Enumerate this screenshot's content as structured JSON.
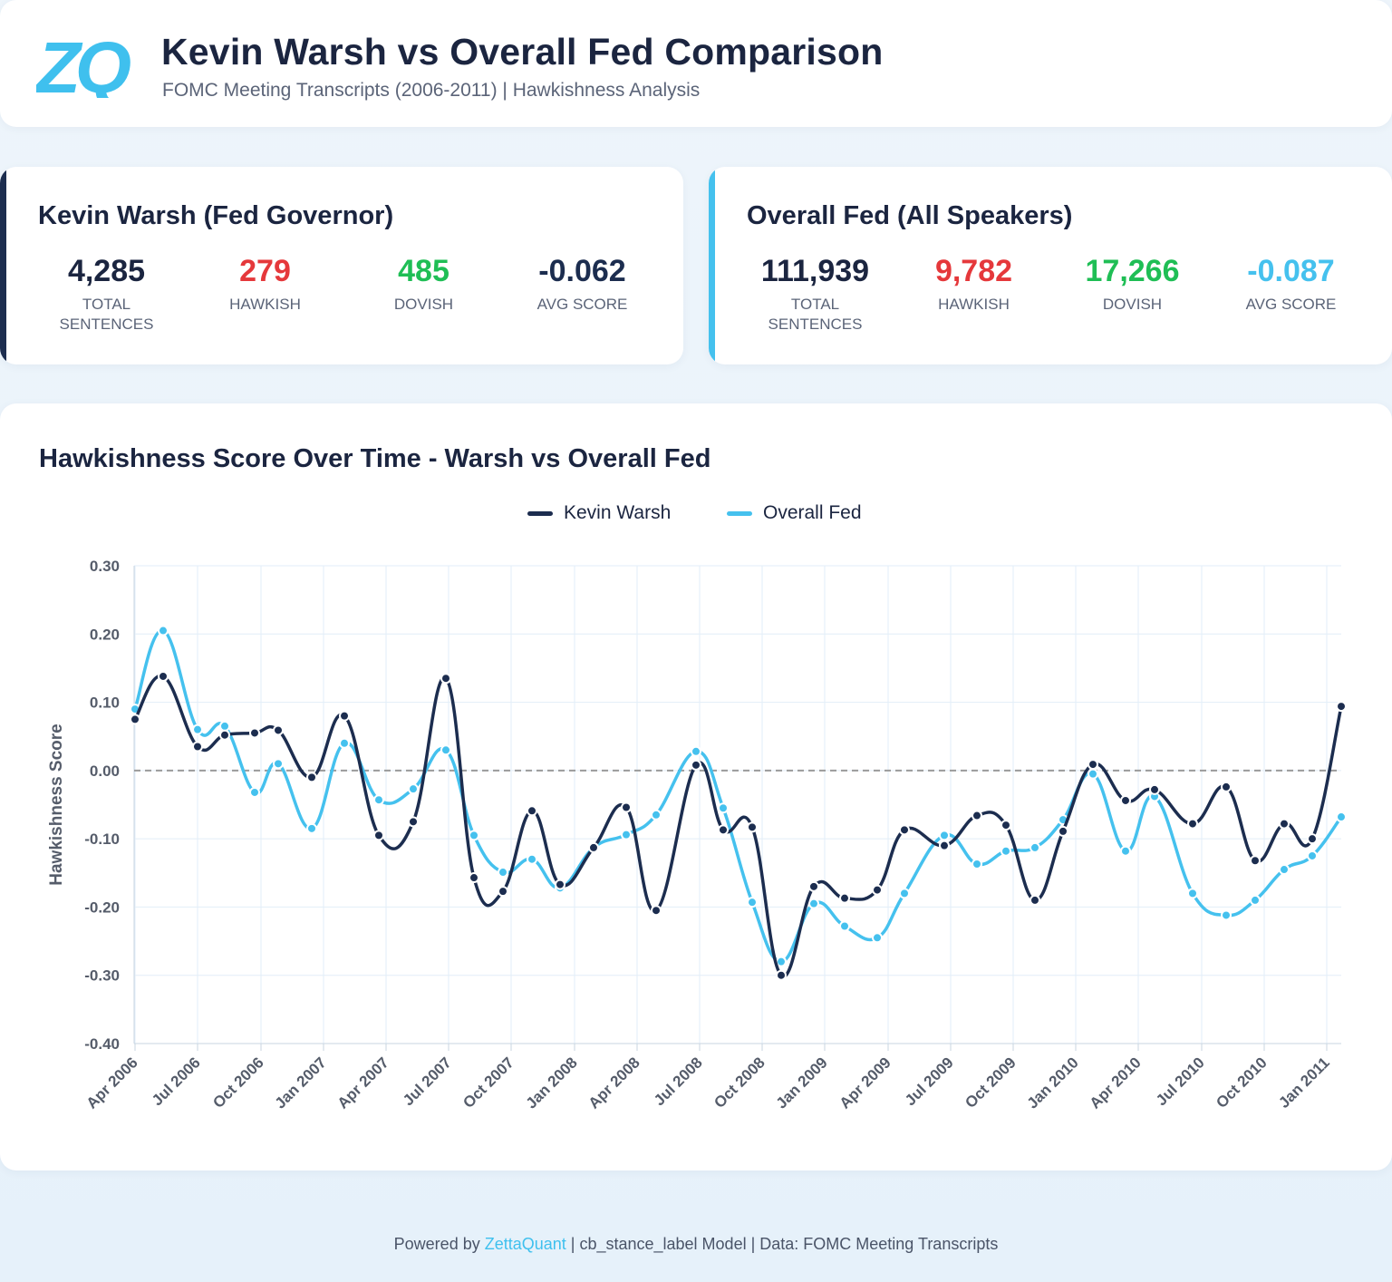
{
  "header": {
    "title": "Kevin Warsh vs Overall Fed Comparison",
    "subtitle": "FOMC Meeting Transcripts (2006-2011) | Hawkishness Analysis",
    "logo_text": "ZQ"
  },
  "colors": {
    "warsh": "#1c2d4f",
    "fed": "#45c1ee",
    "hawkish": "#e5383b",
    "dovish": "#1fbe55",
    "dark_text": "#1b2540",
    "zero_line": "#9a9a9a"
  },
  "stats": {
    "left": {
      "title": "Kevin Warsh (Fed Governor)",
      "total": "4,285",
      "total_label": "TOTAL SENTENCES",
      "hawkish": "279",
      "hawkish_label": "HAWKISH",
      "dovish": "485",
      "dovish_label": "DOVISH",
      "avg": "-0.062",
      "avg_label": "AVG SCORE"
    },
    "right": {
      "title": "Overall Fed (All Speakers)",
      "total": "111,939",
      "total_label": "TOTAL SENTENCES",
      "hawkish": "9,782",
      "hawkish_label": "HAWKISH",
      "dovish": "17,266",
      "dovish_label": "DOVISH",
      "avg": "-0.087",
      "avg_label": "AVG SCORE"
    }
  },
  "chart_data": {
    "type": "line",
    "title": "Hawkishness Score Over Time - Warsh vs Overall Fed",
    "xlabel": "",
    "ylabel": "Hawkishness Score",
    "ylim": [
      -0.4,
      0.3
    ],
    "yticks": [
      "0.30",
      "0.20",
      "0.10",
      "0.00",
      "-0.10",
      "-0.20",
      "-0.30",
      "-0.40"
    ],
    "xticks": [
      "Apr 2006",
      "Jul 2006",
      "Oct 2006",
      "Jan 2007",
      "Apr 2007",
      "Jul 2007",
      "Oct 2007",
      "Jan 2008",
      "Apr 2008",
      "Jul 2008",
      "Oct 2008",
      "Jan 2009",
      "Apr 2009",
      "Jul 2009",
      "Oct 2009",
      "Jan 2010",
      "Apr 2010",
      "Jul 2010",
      "Oct 2010",
      "Jan 2011"
    ],
    "grid": true,
    "legend_position": "top-center",
    "zero_line": true,
    "x": [
      "2006-03-28",
      "2006-05-10",
      "2006-06-29",
      "2006-08-08",
      "2006-09-20",
      "2006-10-25",
      "2006-12-12",
      "2007-01-31",
      "2007-03-21",
      "2007-05-09",
      "2007-06-28",
      "2007-08-07",
      "2007-09-18",
      "2007-10-31",
      "2007-12-11",
      "2008-01-30",
      "2008-03-18",
      "2008-04-30",
      "2008-06-25",
      "2008-08-05",
      "2008-09-16",
      "2008-10-29",
      "2008-12-16",
      "2009-01-28",
      "2009-03-18",
      "2009-04-29",
      "2009-06-24",
      "2009-08-12",
      "2009-09-23",
      "2009-11-04",
      "2009-12-16",
      "2010-01-27",
      "2010-03-16",
      "2010-04-28",
      "2010-06-23",
      "2010-08-10",
      "2010-09-21",
      "2010-11-03",
      "2010-12-14",
      "2011-01-26"
    ],
    "series": [
      {
        "name": "Kevin Warsh",
        "values": [
          0.075,
          0.138,
          0.035,
          0.052,
          0.055,
          0.059,
          -0.01,
          0.08,
          -0.095,
          -0.075,
          0.135,
          -0.157,
          -0.177,
          -0.059,
          -0.167,
          -0.113,
          -0.054,
          -0.205,
          0.008,
          -0.087,
          -0.083,
          -0.3,
          -0.17,
          -0.187,
          -0.175,
          -0.087,
          -0.11,
          -0.066,
          -0.08,
          -0.19,
          -0.089,
          0.009,
          -0.044,
          -0.028,
          -0.078,
          -0.024,
          -0.132,
          -0.078,
          -0.1,
          0.094
        ]
      },
      {
        "name": "Overall Fed",
        "values": [
          0.09,
          0.205,
          0.06,
          0.065,
          -0.032,
          0.01,
          -0.085,
          0.04,
          -0.043,
          -0.027,
          0.03,
          -0.095,
          -0.149,
          -0.13,
          -0.172,
          -0.113,
          -0.094,
          -0.065,
          0.028,
          -0.055,
          -0.193,
          -0.28,
          -0.195,
          -0.228,
          -0.245,
          -0.18,
          -0.095,
          -0.137,
          -0.118,
          -0.113,
          -0.072,
          -0.005,
          -0.118,
          -0.038,
          -0.18,
          -0.212,
          -0.19,
          -0.145,
          -0.125,
          -0.068
        ]
      }
    ]
  },
  "footer": {
    "prefix": "Powered by ",
    "brand": "ZettaQuant",
    "suffix": " | cb_stance_label Model | Data: FOMC Meeting Transcripts"
  }
}
